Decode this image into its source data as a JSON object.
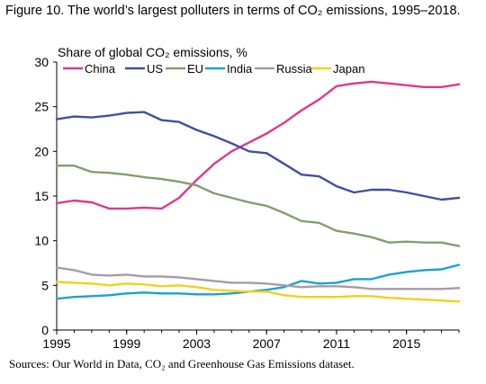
{
  "figure_title": "Figure 10. The world’s largest polluters in terms of CO₂ emissions, 1995–2018.",
  "sources": "Sources: Our World in Data, CO₂ and Greenhouse Gas Emissions dataset.",
  "chart_data": {
    "type": "line",
    "ylabel": "Share of global CO₂ emissions, %",
    "xlabel": "",
    "ylim": [
      0,
      30
    ],
    "xlim": [
      1995,
      2018
    ],
    "yticks": [
      0,
      5,
      10,
      15,
      20,
      25,
      30
    ],
    "xticks": [
      1995,
      1999,
      2003,
      2007,
      2011,
      2015
    ],
    "grid": false,
    "legend_position": "top",
    "x": [
      1995,
      1996,
      1997,
      1998,
      1999,
      2000,
      2001,
      2002,
      2003,
      2004,
      2005,
      2006,
      2007,
      2008,
      2009,
      2010,
      2011,
      2012,
      2013,
      2014,
      2015,
      2016,
      2017,
      2018
    ],
    "series": [
      {
        "name": "China",
        "color": "#e0378d",
        "values": [
          14.2,
          14.5,
          14.3,
          13.6,
          13.6,
          13.7,
          13.6,
          14.8,
          16.8,
          18.6,
          20.0,
          21.0,
          22.0,
          23.2,
          24.6,
          25.8,
          27.3,
          27.6,
          27.8,
          27.6,
          27.4,
          27.2,
          27.2,
          27.5
        ]
      },
      {
        "name": "US",
        "color": "#404fa0",
        "values": [
          23.6,
          23.9,
          23.8,
          24.0,
          24.3,
          24.4,
          23.5,
          23.3,
          22.4,
          21.7,
          20.9,
          20.0,
          19.8,
          18.6,
          17.4,
          17.2,
          16.1,
          15.4,
          15.7,
          15.7,
          15.4,
          15.0,
          14.6,
          14.8
        ]
      },
      {
        "name": "EU",
        "color": "#7fa06c",
        "values": [
          18.4,
          18.4,
          17.7,
          17.6,
          17.4,
          17.1,
          16.9,
          16.6,
          16.2,
          15.3,
          14.8,
          14.3,
          13.9,
          13.1,
          12.2,
          12.0,
          11.1,
          10.8,
          10.4,
          9.8,
          9.9,
          9.8,
          9.8,
          9.4
        ]
      },
      {
        "name": "India",
        "color": "#1ba3c9",
        "values": [
          3.5,
          3.7,
          3.8,
          3.9,
          4.1,
          4.2,
          4.1,
          4.1,
          4.0,
          4.0,
          4.1,
          4.3,
          4.5,
          4.8,
          5.5,
          5.2,
          5.3,
          5.7,
          5.7,
          6.2,
          6.5,
          6.7,
          6.8,
          7.3
        ]
      },
      {
        "name": "Russia",
        "color": "#a89aa6",
        "values": [
          7.0,
          6.7,
          6.2,
          6.1,
          6.2,
          6.0,
          6.0,
          5.9,
          5.7,
          5.5,
          5.3,
          5.3,
          5.2,
          5.0,
          4.8,
          4.9,
          4.9,
          4.8,
          4.6,
          4.6,
          4.6,
          4.6,
          4.6,
          4.7
        ]
      },
      {
        "name": "Japan",
        "color": "#f2d11b",
        "values": [
          5.4,
          5.3,
          5.2,
          5.0,
          5.2,
          5.1,
          4.9,
          5.0,
          4.8,
          4.5,
          4.4,
          4.3,
          4.3,
          3.9,
          3.7,
          3.7,
          3.7,
          3.8,
          3.8,
          3.6,
          3.5,
          3.4,
          3.3,
          3.2
        ]
      }
    ]
  }
}
